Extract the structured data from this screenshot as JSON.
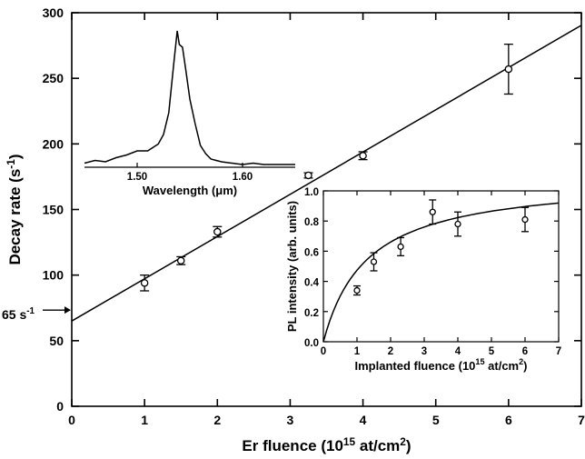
{
  "chart_data": [
    {
      "id": "main",
      "type": "scatter",
      "xlabel": "Er fluence (10",
      "xlabel_sup": "15",
      "xlabel_suffix": " at/cm",
      "xlabel_sup2": "2",
      "xlabel_close": ")",
      "ylabel": "Decay rate (s",
      "ylabel_sup": "-1",
      "ylabel_close": ")",
      "xlim": [
        0,
        7
      ],
      "ylim": [
        0,
        300
      ],
      "xticks": [
        0,
        1,
        2,
        3,
        4,
        5,
        6,
        7
      ],
      "yticks": [
        0,
        50,
        100,
        150,
        200,
        250,
        300
      ],
      "points": [
        {
          "x": 1.0,
          "y": 94,
          "err": 6
        },
        {
          "x": 1.5,
          "y": 111,
          "err": 3
        },
        {
          "x": 2.0,
          "y": 133,
          "err": 4
        },
        {
          "x": 3.25,
          "y": 176,
          "err": 2
        },
        {
          "x": 4.0,
          "y": 191,
          "err": 3
        },
        {
          "x": 6.0,
          "y": 257,
          "err": 19
        }
      ],
      "fit_line": {
        "intercept": 65,
        "slope": 32.2
      },
      "annotation": {
        "text": "65 s",
        "sup": "-1"
      }
    },
    {
      "id": "inset-spectrum",
      "type": "line",
      "xlabel": "Wavelength (μm)",
      "xlim": [
        1.45,
        1.65
      ],
      "xticks": [
        1.5,
        1.6
      ],
      "xtick_labels": [
        "1.50",
        "1.60"
      ],
      "x": [
        1.45,
        1.46,
        1.47,
        1.48,
        1.49,
        1.5,
        1.51,
        1.52,
        1.525,
        1.53,
        1.535,
        1.538,
        1.54,
        1.543,
        1.546,
        1.55,
        1.555,
        1.56,
        1.565,
        1.57,
        1.575,
        1.58,
        1.59,
        1.6,
        1.61,
        1.62,
        1.63,
        1.64,
        1.65
      ],
      "y": [
        0.03,
        0.05,
        0.04,
        0.07,
        0.09,
        0.12,
        0.12,
        0.17,
        0.24,
        0.4,
        0.78,
        1.0,
        0.9,
        0.88,
        0.72,
        0.5,
        0.32,
        0.16,
        0.1,
        0.06,
        0.05,
        0.04,
        0.03,
        0.02,
        0.03,
        0.02,
        0.02,
        0.02,
        0.02
      ]
    },
    {
      "id": "inset-pl",
      "type": "scatter",
      "xlabel": "Implanted fluence (10",
      "xlabel_sup": "15",
      "xlabel_suffix": " at/cm",
      "xlabel_sup2": "2",
      "xlabel_close": ")",
      "ylabel": "PL intensity (arb. units)",
      "xlim": [
        0,
        7
      ],
      "ylim": [
        0,
        1.0
      ],
      "xticks": [
        0,
        1,
        2,
        3,
        4,
        5,
        6,
        7
      ],
      "yticks": [
        0,
        0.2,
        0.4,
        0.6,
        0.8,
        1.0
      ],
      "ytick_labels": [
        "0.0",
        "0.2",
        "0.4",
        "0.6",
        "0.8",
        "1.0"
      ],
      "points": [
        {
          "x": 1.0,
          "y": 0.34,
          "err": 0.03
        },
        {
          "x": 1.5,
          "y": 0.53,
          "err": 0.06
        },
        {
          "x": 2.3,
          "y": 0.63,
          "err": 0.06
        },
        {
          "x": 3.25,
          "y": 0.86,
          "err": 0.08
        },
        {
          "x": 4.0,
          "y": 0.78,
          "err": 0.08
        },
        {
          "x": 6.0,
          "y": 0.81,
          "err": 0.08
        }
      ],
      "fit_curve": {
        "asymptote": 1.09,
        "half": 1.3
      }
    }
  ]
}
